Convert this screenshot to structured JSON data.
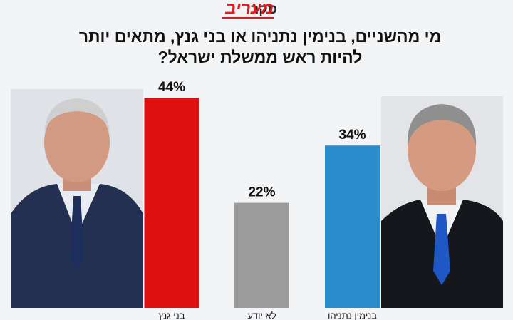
{
  "brand": {
    "name": "מעריב",
    "label": "סקר"
  },
  "chart_data": {
    "type": "bar",
    "title": [
      "מי מהשניים, בנימין נתניהו או בני גנץ, מתאים יותר",
      "להיות ראש ממשלת ישראל?"
    ],
    "categories": [
      "בני גנץ",
      "לא יודע",
      "בנימין נתניהו"
    ],
    "values": [
      44,
      22,
      34
    ],
    "value_labels": [
      "44%",
      "22%",
      "34%"
    ],
    "colors": [
      "#de1010",
      "#9b9b9b",
      "#2a8ccc"
    ]
  }
}
